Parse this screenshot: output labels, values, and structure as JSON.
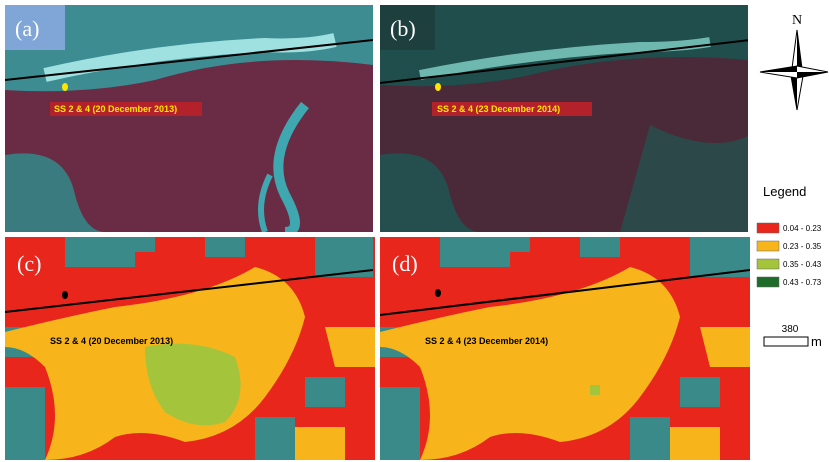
{
  "panels": [
    {
      "label": "(a)",
      "annotation": "SS 2 & 4 (20 December 2013)"
    },
    {
      "label": "(b)",
      "annotation": "SS 2 & 4 (23 December 2014)"
    },
    {
      "label": "(c)",
      "annotation": "SS 2 & 4 (20 December 2013)"
    },
    {
      "label": "(d)",
      "annotation": "SS 2 & 4 (23 December 2014)"
    }
  ],
  "north": "N",
  "legend": {
    "title": "Legend",
    "items": [
      {
        "label": "0.04 - 0.23",
        "color": "#e8261c"
      },
      {
        "label": "0.23 - 0.35",
        "color": "#f7b51b"
      },
      {
        "label": "0.35 - 0.43",
        "color": "#a4c43c"
      },
      {
        "label": "0.43 - 0.73",
        "color": "#1f6b2a"
      }
    ]
  },
  "scale": {
    "value": 380,
    "unit": "m"
  }
}
